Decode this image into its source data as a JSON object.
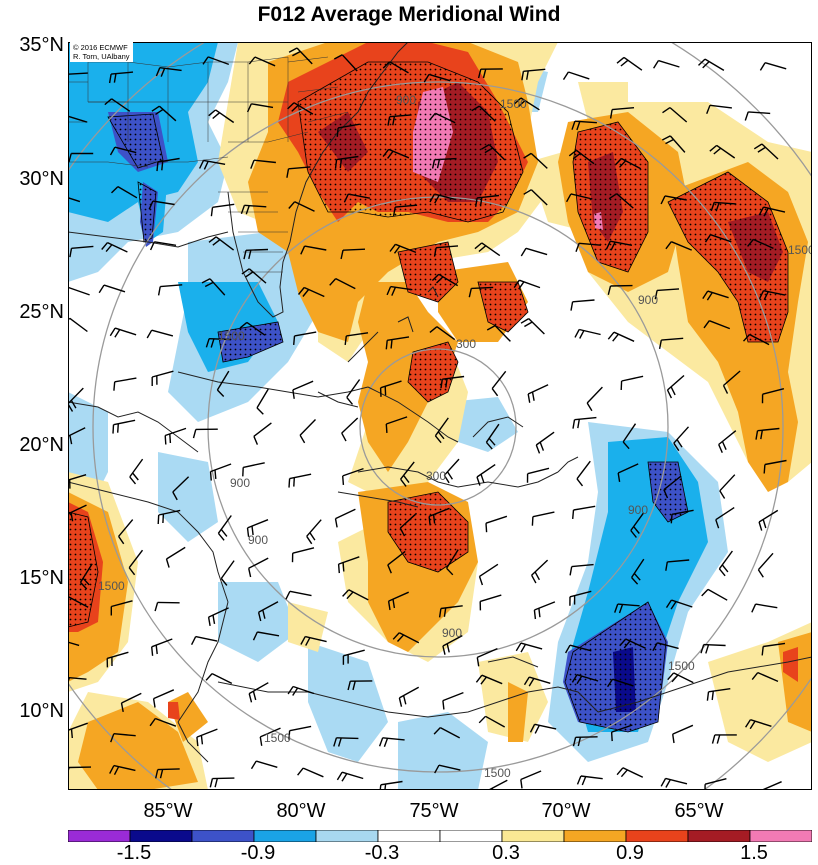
{
  "title": "F012 Average Meridional Wind",
  "credit": [
    "© 2016 ECMWF",
    "R. Torn, UAlbany"
  ],
  "lat_labels": [
    "35°N",
    "30°N",
    "25°N",
    "20°N",
    "15°N",
    "10°N"
  ],
  "lon_labels": [
    "85°W",
    "80°W",
    "75°W",
    "70°W",
    "65°W"
  ],
  "height_contour_labels": [
    "300",
    "900",
    "1500"
  ],
  "colorbar": {
    "labels": [
      "-1.5",
      "-0.9",
      "-0.3",
      "0.3",
      "0.9",
      "1.5"
    ],
    "colors": [
      "#9a2bd6",
      "#0a0a8c",
      "#3d52c8",
      "#1aa3e6",
      "#a8d8f0",
      "#ffffff",
      "#ffffff",
      "#fae894",
      "#f5a623",
      "#e8431c",
      "#a51c24",
      "#f27ab4"
    ]
  },
  "palette": {
    "dark_blue": "#3d52c8",
    "navy": "#0a0a8c",
    "blue": "#1ab0ec",
    "light_blue": "#aadaf3",
    "light_yellow": "#fbe9a0",
    "orange": "#f5a623",
    "red_orange": "#e8431c",
    "dark_red": "#a51c24",
    "pink": "#f27ab4",
    "range_ring": "#9a9a9a",
    "coast": "#222222"
  }
}
